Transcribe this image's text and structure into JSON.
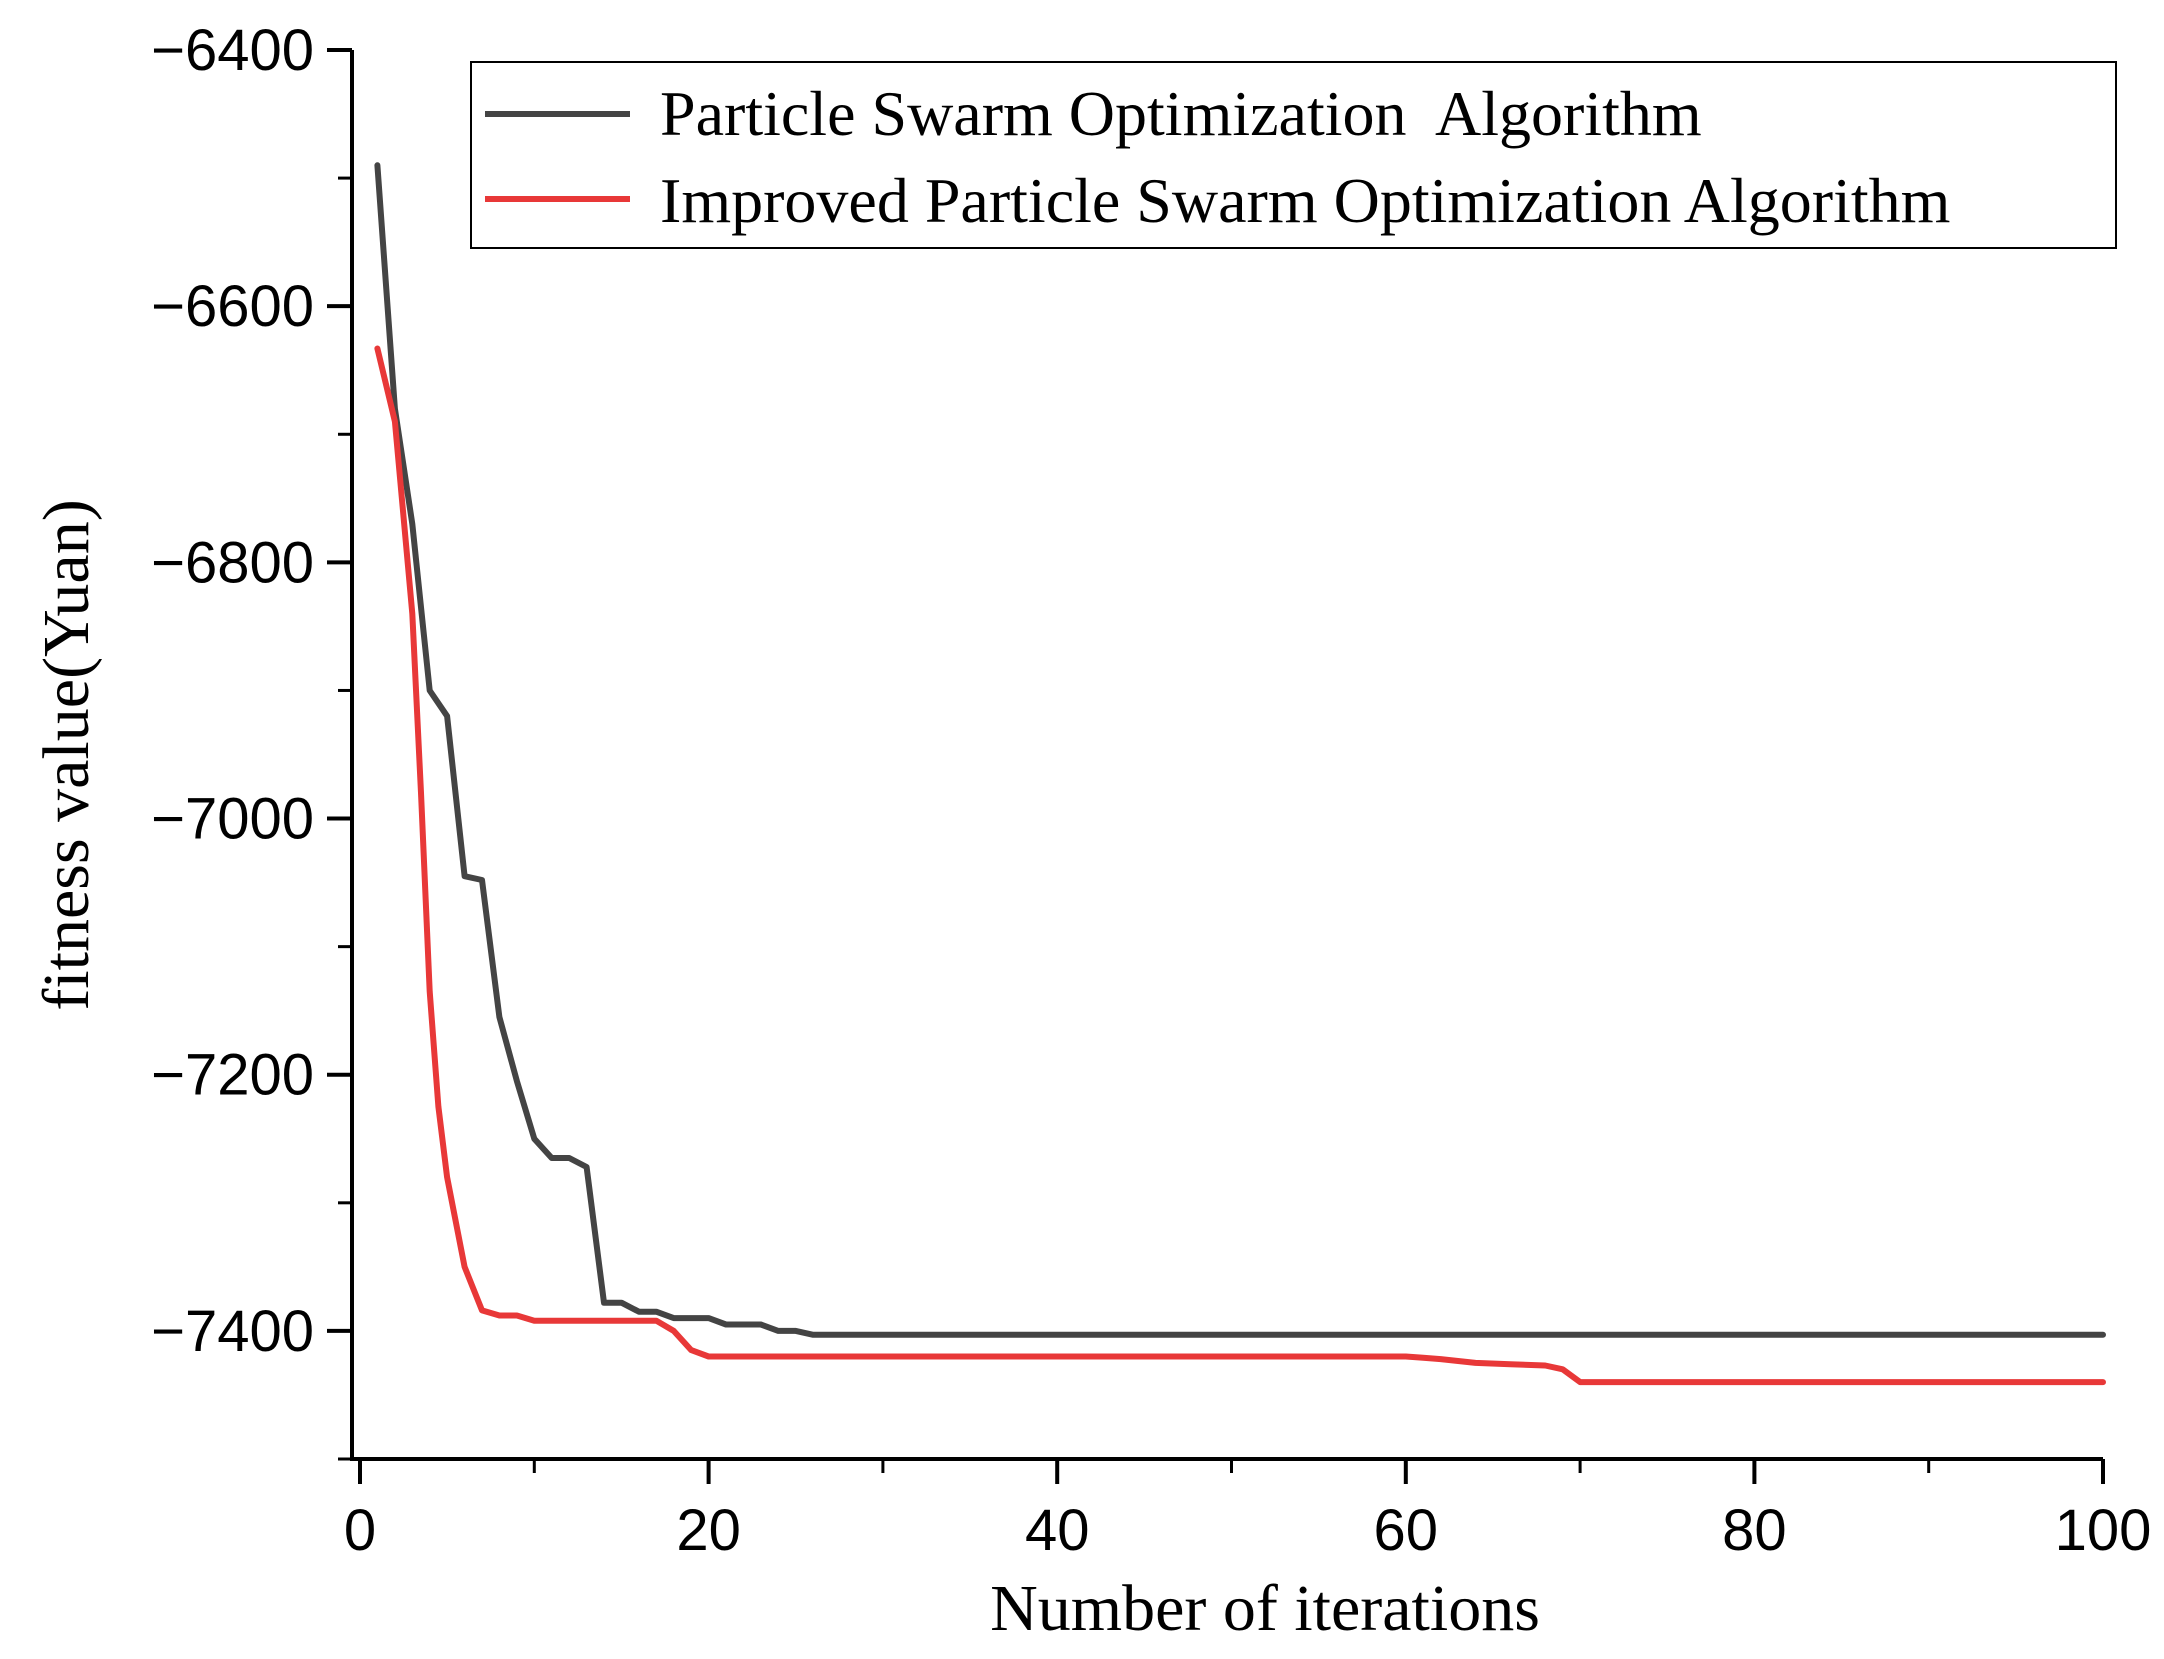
{
  "chart_data": {
    "type": "line",
    "title": "",
    "xlabel": "Number of iterations",
    "ylabel": "fitness value(Yuan)",
    "xlim": [
      -1,
      100
    ],
    "ylim": [
      -7500,
      -6400
    ],
    "x_ticks": [
      0,
      20,
      40,
      60,
      80,
      100
    ],
    "x_tick_labels": [
      "0",
      "20",
      "40",
      "60",
      "80",
      "100"
    ],
    "y_ticks": [
      -6400,
      -6600,
      -6800,
      -7000,
      -7200,
      -7400
    ],
    "y_tick_labels": [
      "−6400",
      "−6600",
      "−6800",
      "−7000",
      "−7200",
      "−7400"
    ],
    "legend_position": "top-right",
    "series": [
      {
        "name": "Particle Swarm Optimization  Algorithm",
        "color": "#444444",
        "x": [
          1,
          2,
          3,
          4,
          5,
          6,
          7,
          8,
          9,
          10,
          11,
          12,
          13,
          14,
          15,
          16,
          17,
          18,
          19,
          20,
          21,
          22,
          23,
          24,
          25,
          26,
          30,
          40,
          50,
          60,
          70,
          80,
          90,
          100
        ],
        "y": [
          -6490,
          -6680,
          -6770,
          -6900,
          -6920,
          -7045,
          -7048,
          -7155,
          -7205,
          -7250,
          -7265,
          -7265,
          -7272,
          -7378,
          -7378,
          -7385,
          -7385,
          -7390,
          -7390,
          -7390,
          -7395,
          -7395,
          -7395,
          -7400,
          -7400,
          -7403,
          -7403,
          -7403,
          -7403,
          -7403,
          -7403,
          -7403,
          -7403,
          -7403
        ]
      },
      {
        "name": "Improved Particle Swarm Optimization Algorithm",
        "color": "#e83838",
        "x": [
          1,
          2,
          3,
          3.5,
          4,
          4.5,
          5,
          6,
          7,
          8,
          9,
          10,
          11,
          12,
          13,
          14,
          15,
          16,
          17,
          18,
          19,
          20,
          21,
          30,
          40,
          50,
          60,
          61,
          62,
          64,
          66,
          68,
          69,
          70,
          80,
          90,
          100
        ],
        "y": [
          -6633,
          -6690,
          -6840,
          -6980,
          -7135,
          -7225,
          -7280,
          -7350,
          -7384,
          -7388,
          -7388,
          -7392,
          -7392,
          -7392,
          -7392,
          -7392,
          -7392,
          -7392,
          -7392,
          -7400,
          -7415,
          -7420,
          -7420,
          -7420,
          -7420,
          -7420,
          -7420,
          -7421,
          -7422,
          -7425,
          -7426,
          -7427,
          -7430,
          -7440,
          -7440,
          -7440,
          -7440
        ]
      }
    ]
  }
}
